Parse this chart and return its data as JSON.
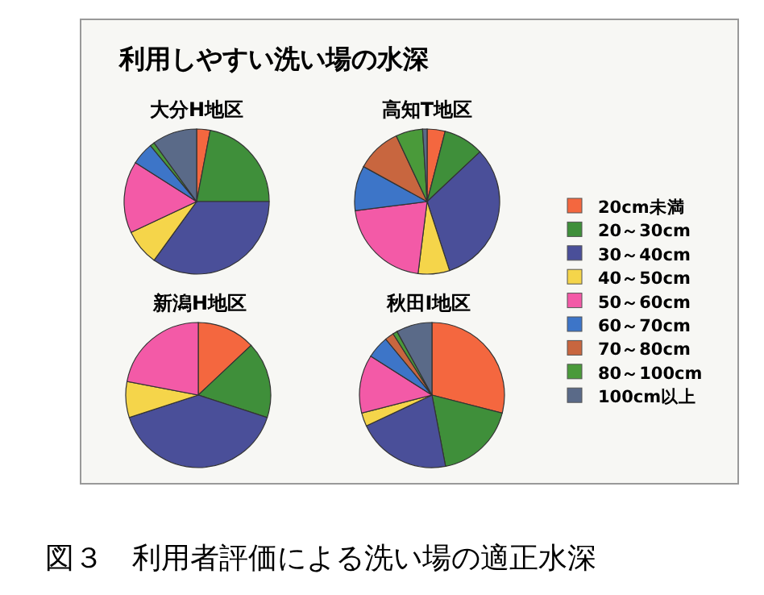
{
  "chart_data": [
    {
      "type": "pie",
      "title": "大分H地区",
      "annotations": [
        "利用しやすい洗い場の水深",
        "図３　利用者評価による洗い場の適正水深"
      ],
      "legend": "right",
      "categories": [
        "20cm未満",
        "20～30cm",
        "30～40cm",
        "40～50cm",
        "50～60cm",
        "60～70cm",
        "70～80cm",
        "80～100cm",
        "100cm以上"
      ],
      "values": [
        3,
        22,
        35,
        8,
        16,
        5,
        0,
        1,
        10
      ],
      "colors": [
        "#f4673f",
        "#3f8f3a",
        "#4a4f99",
        "#f5d54a",
        "#f35aa7",
        "#3d75c8",
        "#c8663f",
        "#4a9a3a",
        "#5a6a88"
      ]
    },
    {
      "type": "pie",
      "title": "高知T地区",
      "categories": [
        null,
        null,
        null,
        null,
        null,
        null,
        null,
        null,
        null
      ],
      "values": [
        4,
        9,
        32,
        7,
        21,
        10,
        10,
        6,
        1
      ],
      "colors": [
        "#f4673f",
        "#3f8f3a",
        "#4a4f99",
        "#f5d54a",
        "#f35aa7",
        "#3d75c8",
        "#c8663f",
        "#4a9a3a",
        "#5a6a88"
      ]
    },
    {
      "type": "pie",
      "title": "新潟H地区",
      "categories": [
        null,
        null,
        null,
        null,
        null,
        null,
        null,
        null,
        null
      ],
      "values": [
        13,
        17,
        40,
        8,
        22,
        0,
        0,
        0,
        0
      ],
      "colors": [
        "#f4673f",
        "#3f8f3a",
        "#4a4f99",
        "#f5d54a",
        "#f35aa7",
        "#3d75c8",
        "#c8663f",
        "#4a9a3a",
        "#5a6a88"
      ]
    },
    {
      "type": "pie",
      "title": "秋田I地区",
      "categories": [
        null,
        null,
        null,
        null,
        null,
        null,
        null,
        null,
        null
      ],
      "values": [
        29,
        18,
        21,
        3,
        13,
        5,
        2,
        1,
        8
      ],
      "colors": [
        "#f4673f",
        "#3f8f3a",
        "#4a4f99",
        "#f5d54a",
        "#f35aa7",
        "#3d75c8",
        "#c8663f",
        "#4a9a3a",
        "#5a6a88"
      ]
    }
  ]
}
